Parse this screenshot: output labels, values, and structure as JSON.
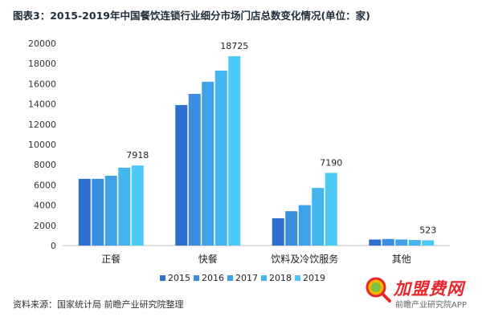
{
  "title": "图表3：2015-2019年中国餐饮连锁行业细分市场门店总数变化情况(单位：家)",
  "source": "资料来源：国家统计局 前瞻产业研究院整理",
  "brand": {
    "main": "加盟费网",
    "sub": "前瞻产业研究院APP"
  },
  "colors": [
    "#2f6fd0",
    "#3a8ee0",
    "#3da2e8",
    "#43b6ef",
    "#4ccaf5"
  ],
  "chart_data": {
    "type": "bar",
    "categories": [
      "正餐",
      "快餐",
      "饮料及冷饮服务",
      "其他"
    ],
    "series": [
      {
        "name": "2015",
        "values": [
          6600,
          13900,
          2700,
          600
        ]
      },
      {
        "name": "2016",
        "values": [
          6600,
          15000,
          3400,
          650
        ]
      },
      {
        "name": "2017",
        "values": [
          6900,
          16200,
          4000,
          600
        ]
      },
      {
        "name": "2018",
        "values": [
          7700,
          17300,
          5700,
          550
        ]
      },
      {
        "name": "2019",
        "values": [
          7918,
          18725,
          7190,
          523
        ]
      }
    ],
    "data_labels": [
      {
        "category": "正餐",
        "series": "2019",
        "text": "7918"
      },
      {
        "category": "快餐",
        "series": "2019",
        "text": "18725"
      },
      {
        "category": "饮料及冷饮服务",
        "series": "2019",
        "text": "7190"
      },
      {
        "category": "其他",
        "series": "2019",
        "text": "523"
      }
    ],
    "ylim": [
      0,
      20000
    ],
    "yticks": [
      0,
      2000,
      4000,
      6000,
      8000,
      10000,
      12000,
      14000,
      16000,
      18000,
      20000
    ],
    "legend": "bottom",
    "grid": false
  }
}
